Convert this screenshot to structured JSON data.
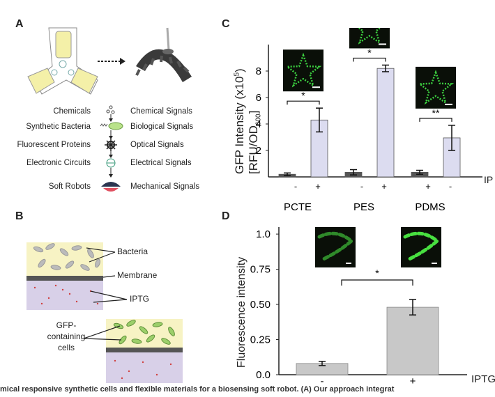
{
  "panels": {
    "A": {
      "letter": "A",
      "left_labels": [
        "Chemicals",
        "Synthetic Bacteria",
        "Fluorescent Proteins",
        "Electronic Circuits",
        "Soft Robots"
      ],
      "right_labels": [
        "Chemical Signals",
        "Biological Signals",
        "Optical Signals",
        "Electrical Signals",
        "Mechanical Signals"
      ]
    },
    "B": {
      "letter": "B",
      "labels": {
        "bacteria": "Bacteria",
        "membrane": "Membrane",
        "iptg": "IPTG",
        "gfp": [
          "GFP-",
          "containing",
          "cells"
        ]
      }
    },
    "C": {
      "letter": "C",
      "ylabel_line1": "GFP Intensity (x10",
      "ylabel_sup": "5",
      "ylabel_line1_end": ")",
      "ylabel_line2": "[RFU/OD",
      "ylabel_sub": "600",
      "ylabel_line2_end": "]",
      "iptg_label": "IP"
    },
    "D": {
      "letter": "D",
      "iptg_label": "IPTG"
    }
  },
  "chart_data": [
    {
      "type": "bar",
      "panel": "C",
      "ylim": [
        0,
        10
      ],
      "yticks": [
        "2",
        "4",
        "6",
        "8"
      ],
      "ytick_values": [
        2,
        4,
        6,
        8
      ],
      "colors": {
        "minus": "#555555",
        "plus": "#dcdcf0"
      },
      "groups": [
        {
          "name": "PCTE",
          "minus_label": "-",
          "plus_label": "+",
          "values": [
            0.2,
            4.3
          ],
          "errors": [
            0.1,
            0.9
          ],
          "sig": "*",
          "scalebar": true
        },
        {
          "name": "PES",
          "minus_label": "-",
          "plus_label": "+",
          "values": [
            0.35,
            8.2
          ],
          "errors": [
            0.2,
            0.25
          ],
          "sig": "*",
          "scalebar": true
        },
        {
          "name": "PDMS",
          "minus_label": "+",
          "plus_label": "-",
          "values": [
            0.35,
            2.95
          ],
          "errors": [
            0.15,
            0.95
          ],
          "sig": "**",
          "scalebar": true
        }
      ]
    },
    {
      "type": "bar",
      "panel": "D",
      "ylabel": "Fluorescence intensity",
      "ylim": [
        0,
        1.05
      ],
      "yticks": [
        "0.0",
        "0.25",
        "0.50",
        "0.75",
        "1.0"
      ],
      "ytick_values": [
        0,
        0.25,
        0.5,
        0.75,
        1.0
      ],
      "categories": [
        "-",
        "+"
      ],
      "values": [
        0.08,
        0.48
      ],
      "errors": [
        0.015,
        0.055
      ],
      "color": "#c8c8c8",
      "sig": "*"
    }
  ],
  "caption": "mical responsive synthetic cells and flexible materials for a biosensing soft robot. (A) Our approach integrat"
}
